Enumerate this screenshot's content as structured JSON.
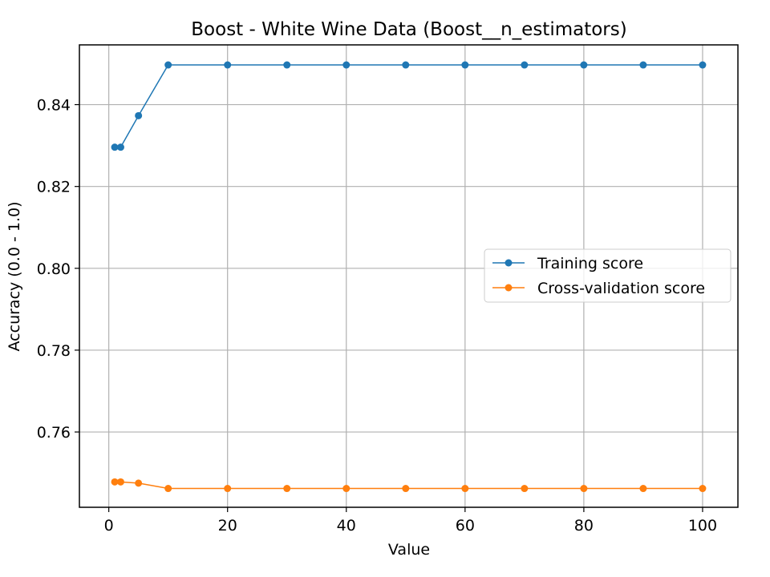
{
  "chart_data": {
    "type": "line",
    "title": "Boost - White Wine Data (Boost__n_estimators)",
    "xlabel": "Value",
    "ylabel": "Accuracy (0.0 - 1.0)",
    "xlim": [
      -4.95,
      105.95
    ],
    "ylim": [
      0.7416,
      0.8546
    ],
    "xticks": [
      0,
      20,
      40,
      60,
      80,
      100
    ],
    "xtick_labels": [
      "0",
      "20",
      "40",
      "60",
      "80",
      "100"
    ],
    "yticks": [
      0.76,
      0.78,
      0.8,
      0.82,
      0.84
    ],
    "ytick_labels": [
      "0.76",
      "0.78",
      "0.80",
      "0.82",
      "0.84"
    ],
    "grid": true,
    "legend_position": "center-right",
    "x": [
      1,
      2,
      5,
      10,
      20,
      30,
      40,
      50,
      60,
      70,
      80,
      90,
      100
    ],
    "series": [
      {
        "name": "Training score",
        "color": "#1f77b4",
        "values": [
          0.8296,
          0.8296,
          0.8373,
          0.8497,
          0.8497,
          0.8497,
          0.8497,
          0.8497,
          0.8497,
          0.8497,
          0.8497,
          0.8497,
          0.8497
        ]
      },
      {
        "name": "Cross-validation score",
        "color": "#ff7f0e",
        "values": [
          0.7478,
          0.7478,
          0.7475,
          0.7462,
          0.7462,
          0.7462,
          0.7462,
          0.7462,
          0.7462,
          0.7462,
          0.7462,
          0.7462,
          0.7462
        ]
      }
    ]
  }
}
